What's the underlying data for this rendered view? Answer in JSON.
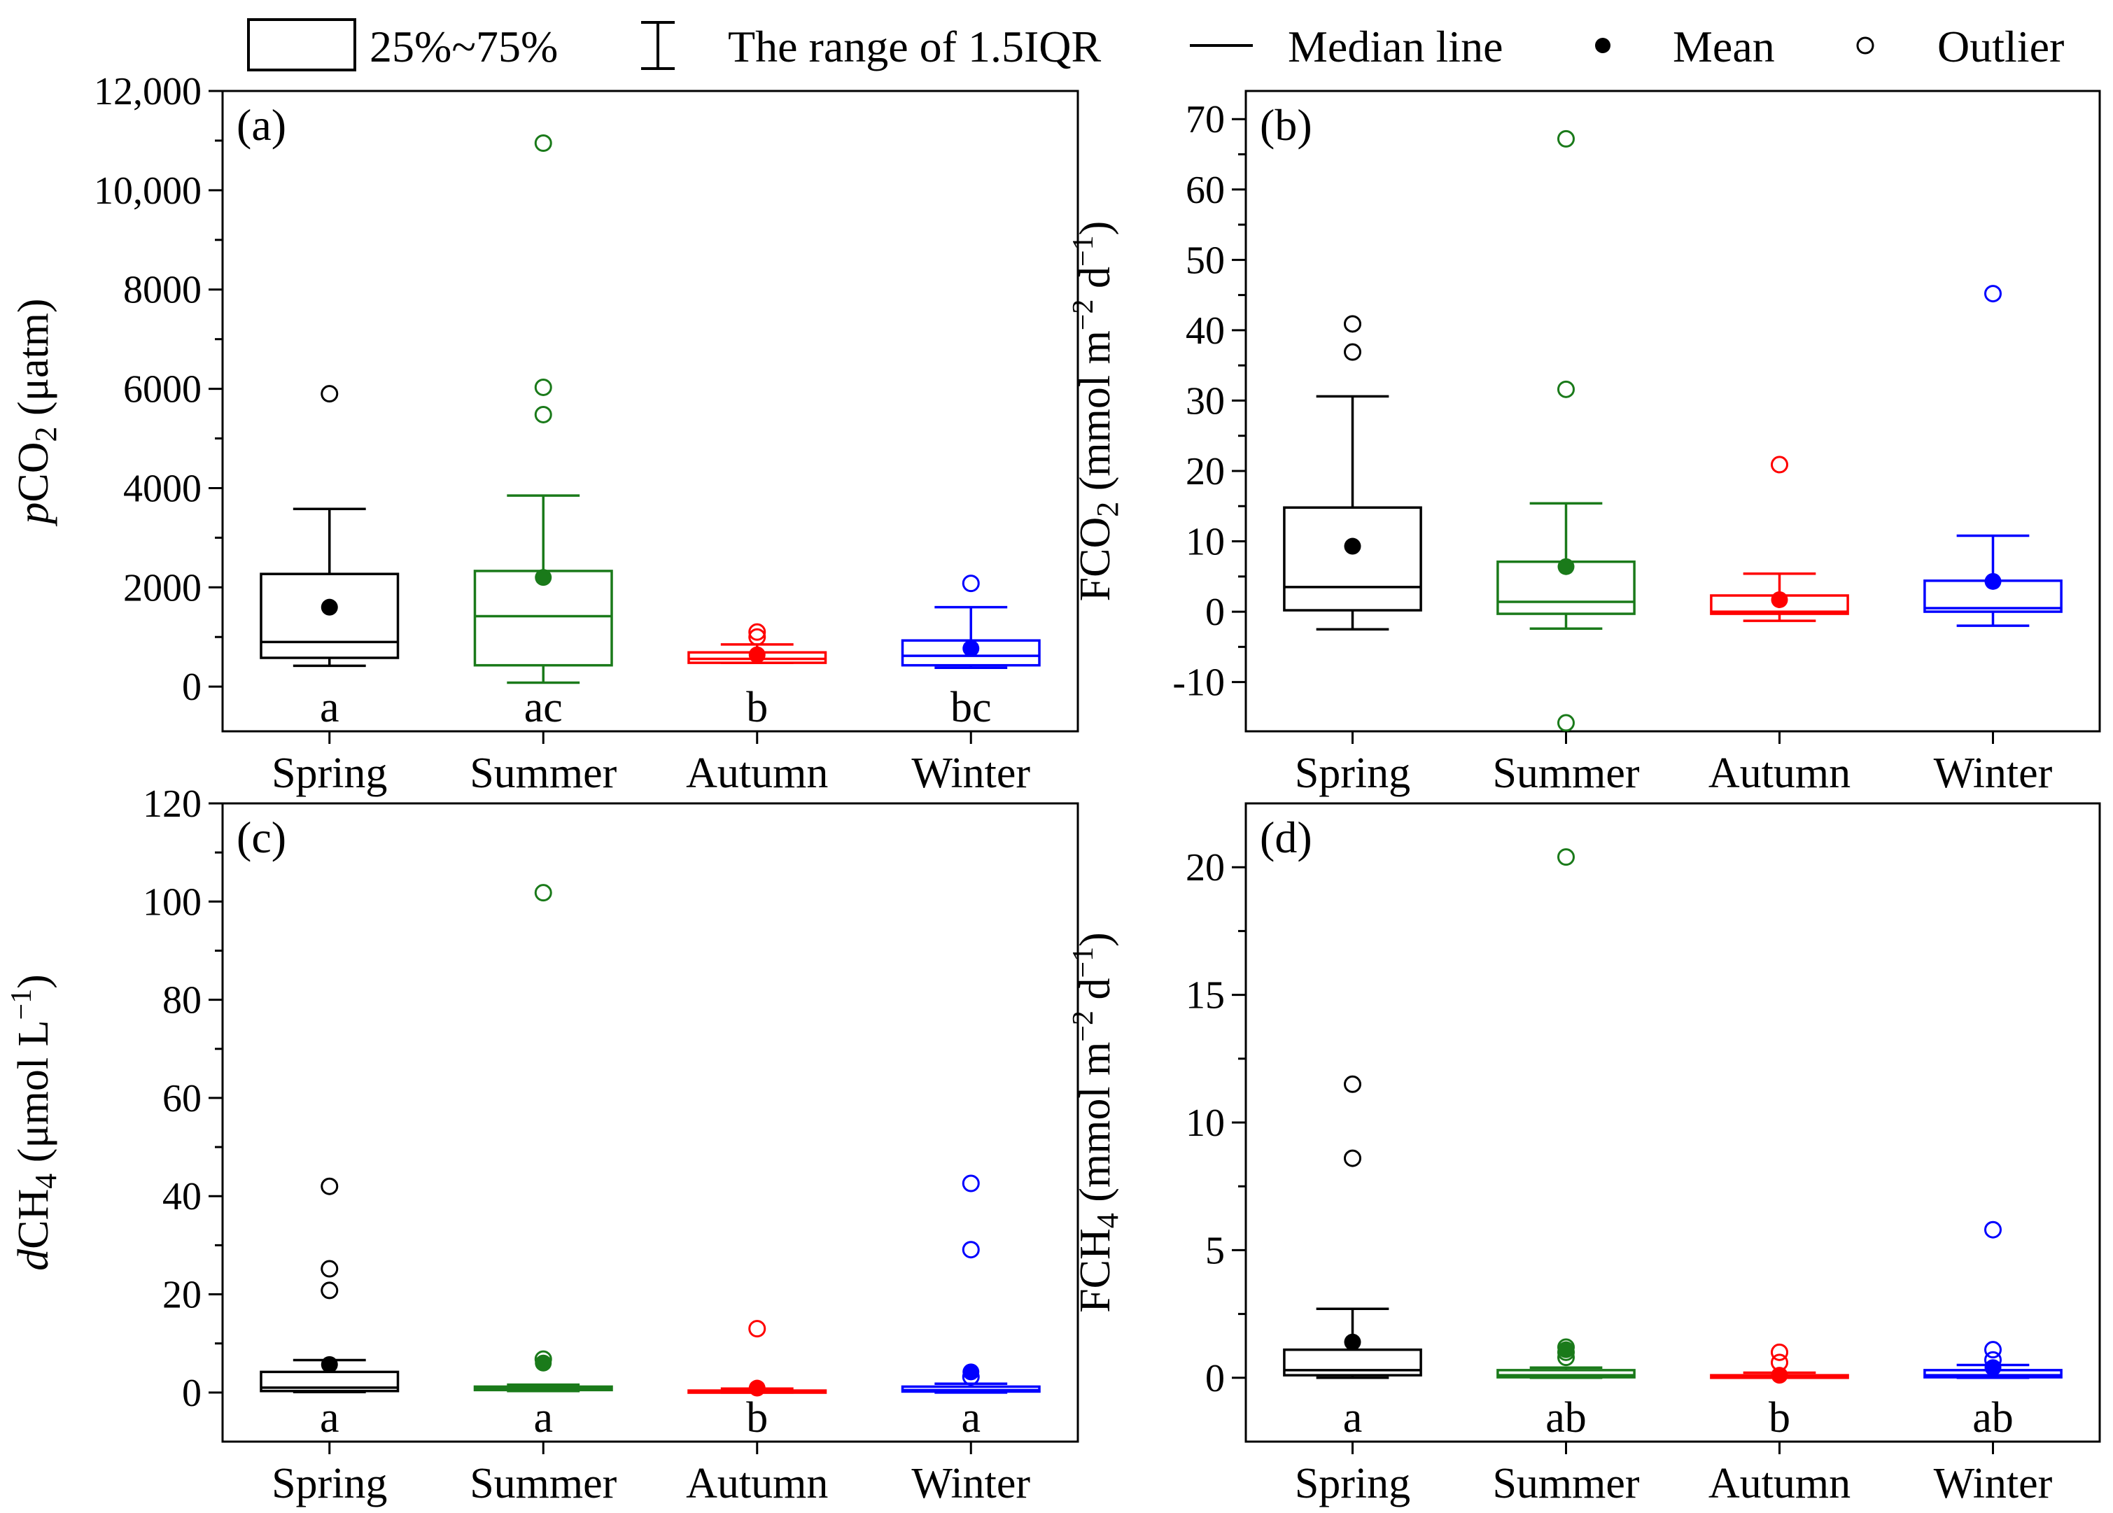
{
  "legend": {
    "box_label": "25%~75%",
    "whisker_label": "The range of 1.5IQR",
    "median_label": "Median line",
    "mean_label": "Mean",
    "outlier_label": "Outlier"
  },
  "colors": {
    "Spring": "#000000",
    "Summer": "#1a7a1a",
    "Autumn": "#ff0000",
    "Winter": "#0000ff"
  },
  "chart_data": [
    {
      "type": "box",
      "panel": "(a)",
      "ylabel": "pCO2 (μatm)",
      "ylabel_parts": [
        {
          "t": "p",
          "italic": true
        },
        {
          "t": "CO"
        },
        {
          "t": "2",
          "sub": true
        },
        {
          "t": " (μatm)"
        }
      ],
      "ylim": [
        -900,
        12000
      ],
      "yticks": [
        0,
        2000,
        4000,
        6000,
        8000,
        10000,
        12000
      ],
      "ytick_labels": [
        "0",
        "2000",
        "4000",
        "6000",
        "8000",
        "10,000",
        "12,000"
      ],
      "categories": [
        "Spring",
        "Summer",
        "Autumn",
        "Winter"
      ],
      "boxes": [
        {
          "q1": 580,
          "median": 900,
          "q3": 2270,
          "whisker_low": 420,
          "whisker_high": 3580,
          "mean": 1600,
          "outliers": [
            5900
          ],
          "letter": "a"
        },
        {
          "q1": 430,
          "median": 1420,
          "q3": 2330,
          "whisker_low": 80,
          "whisker_high": 3850,
          "mean": 2200,
          "outliers": [
            5480,
            6030,
            10950
          ],
          "letter": "ac"
        },
        {
          "q1": 480,
          "median": 560,
          "q3": 690,
          "whisker_low": 480,
          "whisker_high": 850,
          "mean": 640,
          "outliers": [
            1000,
            1100
          ],
          "letter": "b"
        },
        {
          "q1": 430,
          "median": 620,
          "q3": 930,
          "whisker_low": 380,
          "whisker_high": 1600,
          "mean": 770,
          "outliers": [
            2080
          ],
          "letter": "bc"
        }
      ]
    },
    {
      "type": "box",
      "panel": "(b)",
      "ylabel": "FCO2 (mmol m−2 d−1)",
      "ylabel_parts": [
        {
          "t": "FCO"
        },
        {
          "t": "2",
          "sub": true
        },
        {
          "t": " (mmol m"
        },
        {
          "t": "−2",
          "sup": true
        },
        {
          "t": " d"
        },
        {
          "t": "−1",
          "sup": true
        },
        {
          "t": ")"
        }
      ],
      "ylim": [
        -17,
        74
      ],
      "yticks": [
        -10,
        0,
        10,
        20,
        30,
        40,
        50,
        60,
        70
      ],
      "ytick_labels": [
        "-10",
        "0",
        "10",
        "20",
        "30",
        "40",
        "50",
        "60",
        "70"
      ],
      "categories": [
        "Spring",
        "Summer",
        "Autumn",
        "Winter"
      ],
      "boxes": [
        {
          "q1": 0.2,
          "median": 3.5,
          "q3": 14.8,
          "whisker_low": -2.5,
          "whisker_high": 30.6,
          "mean": 9.3,
          "outliers": [
            36.9,
            40.9
          ],
          "letter": ""
        },
        {
          "q1": -0.3,
          "median": 1.4,
          "q3": 7.1,
          "whisker_low": -2.4,
          "whisker_high": 15.4,
          "mean": 6.4,
          "outliers": [
            -15.8,
            31.6,
            67.2
          ],
          "letter": ""
        },
        {
          "q1": -0.3,
          "median": 0.0,
          "q3": 2.3,
          "whisker_low": -1.3,
          "whisker_high": 5.4,
          "mean": 1.7,
          "outliers": [
            20.9
          ],
          "letter": ""
        },
        {
          "q1": 0.0,
          "median": 0.5,
          "q3": 4.4,
          "whisker_low": -2.0,
          "whisker_high": 10.8,
          "mean": 4.3,
          "outliers": [
            45.2
          ],
          "letter": ""
        }
      ]
    },
    {
      "type": "box",
      "panel": "(c)",
      "ylabel": "dCH4 (μmol L−1)",
      "ylabel_parts": [
        {
          "t": "d",
          "italic": true
        },
        {
          "t": "CH"
        },
        {
          "t": "4",
          "sub": true
        },
        {
          "t": " (μmol L"
        },
        {
          "t": "−1",
          "sup": true
        },
        {
          "t": ")"
        }
      ],
      "ylim": [
        -10,
        120
      ],
      "yticks": [
        0,
        20,
        40,
        60,
        80,
        100,
        120
      ],
      "ytick_labels": [
        "0",
        "20",
        "40",
        "60",
        "80",
        "100",
        "120"
      ],
      "categories": [
        "Spring",
        "Summer",
        "Autumn",
        "Winter"
      ],
      "boxes": [
        {
          "q1": 0.3,
          "median": 1.0,
          "q3": 4.2,
          "whisker_low": 0.1,
          "whisker_high": 6.6,
          "mean": 5.7,
          "outliers": [
            20.8,
            25.2,
            42.0
          ],
          "letter": "a"
        },
        {
          "q1": 0.5,
          "median": 0.8,
          "q3": 1.2,
          "whisker_low": 0.3,
          "whisker_high": 1.6,
          "mean": 6.0,
          "outliers": [
            6.8,
            101.8
          ],
          "letter": "a"
        },
        {
          "q1": 0.1,
          "median": 0.2,
          "q3": 0.4,
          "whisker_low": 0.0,
          "whisker_high": 0.8,
          "mean": 0.9,
          "outliers": [
            13.0
          ],
          "letter": "b"
        },
        {
          "q1": 0.2,
          "median": 0.5,
          "q3": 1.2,
          "whisker_low": 0.0,
          "whisker_high": 1.8,
          "mean": 4.2,
          "outliers": [
            3.2,
            29.1,
            42.6
          ],
          "letter": "a"
        }
      ]
    },
    {
      "type": "box",
      "panel": "(d)",
      "ylabel": "FCH4 (mmol m−2 d−1)",
      "ylabel_parts": [
        {
          "t": "FCH"
        },
        {
          "t": "4",
          "sub": true
        },
        {
          "t": " (mmol m"
        },
        {
          "t": "−2",
          "sup": true
        },
        {
          "t": " d"
        },
        {
          "t": "−1",
          "sup": true
        },
        {
          "t": ")"
        }
      ],
      "ylim": [
        -2.5,
        22.5
      ],
      "yticks": [
        0,
        5,
        10,
        15,
        20
      ],
      "ytick_labels": [
        "0",
        "5",
        "10",
        "15",
        "20"
      ],
      "categories": [
        "Spring",
        "Summer",
        "Autumn",
        "Winter"
      ],
      "boxes": [
        {
          "q1": 0.1,
          "median": 0.3,
          "q3": 1.1,
          "whisker_low": 0.0,
          "whisker_high": 2.7,
          "mean": 1.4,
          "outliers": [
            8.6,
            11.5
          ],
          "letter": "a"
        },
        {
          "q1": 0.02,
          "median": 0.1,
          "q3": 0.3,
          "whisker_low": 0.0,
          "whisker_high": 0.4,
          "mean": 1.1,
          "outliers": [
            0.8,
            1.0,
            1.2,
            20.4
          ],
          "letter": "ab"
        },
        {
          "q1": 0.0,
          "median": 0.05,
          "q3": 0.1,
          "whisker_low": 0.0,
          "whisker_high": 0.2,
          "mean": 0.1,
          "outliers": [
            0.6,
            1.0
          ],
          "letter": "b"
        },
        {
          "q1": 0.02,
          "median": 0.1,
          "q3": 0.3,
          "whisker_low": 0.0,
          "whisker_high": 0.5,
          "mean": 0.4,
          "outliers": [
            0.7,
            1.1,
            5.8
          ],
          "letter": "ab"
        }
      ]
    }
  ]
}
